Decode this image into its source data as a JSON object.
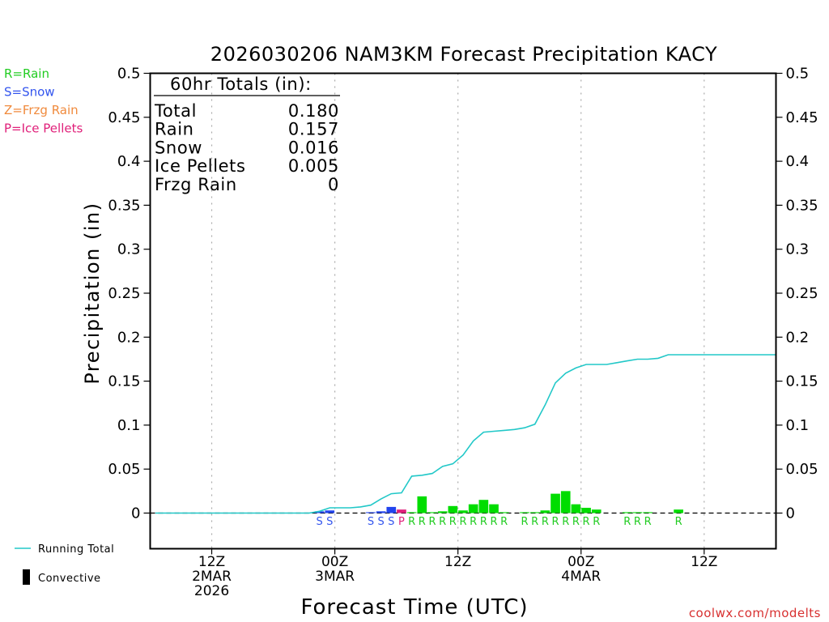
{
  "chart_data": {
    "type": "bar",
    "title": "2026030206 NAM3KM Forecast Precipitation KACY",
    "ylabel": "Precipitation (in)",
    "xlabel": "Forecast Time (UTC)",
    "ylim": [
      -0.04,
      0.5
    ],
    "yticks": [
      0,
      0.05,
      0.1,
      0.15,
      0.2,
      0.25,
      0.3,
      0.35,
      0.4,
      0.45,
      0.5
    ],
    "ytick_labels": [
      "0",
      "0.05",
      "0.1",
      "0.15",
      "0.2",
      "0.25",
      "0.3",
      "0.35",
      "0.4",
      "0.45",
      "0.5"
    ],
    "xlim_hours": [
      0,
      61
    ],
    "x_ticks": [
      {
        "hour": 6,
        "lines": [
          "12Z",
          "2MAR",
          "2026"
        ]
      },
      {
        "hour": 18,
        "lines": [
          "00Z",
          "3MAR"
        ]
      },
      {
        "hour": 30,
        "lines": [
          "12Z"
        ]
      },
      {
        "hour": 42,
        "lines": [
          "00Z",
          "4MAR"
        ]
      },
      {
        "hour": 54,
        "lines": [
          "12Z"
        ]
      }
    ],
    "type_legend": [
      {
        "label": "R=Rain",
        "color": "#22cc22"
      },
      {
        "label": "S=Snow",
        "color": "#3355ee"
      },
      {
        "label": "Z=Frzg Rain",
        "color": "#f08a3c"
      },
      {
        "label": "P=Ice Pellets",
        "color": "#e0207a"
      }
    ],
    "totals_header": "60hr Totals (in):",
    "totals": [
      {
        "label": "Total",
        "value": "0.180"
      },
      {
        "label": "Rain",
        "value": "0.157"
      },
      {
        "label": "Snow",
        "value": "0.016"
      },
      {
        "label": "Ice Pellets",
        "value": "0.005"
      },
      {
        "label": "Frzg Rain",
        "value": "0"
      }
    ],
    "type_colors": {
      "R": "#00dd00",
      "S": "#2244ee",
      "P": "#e0207a",
      "Z": "#f08a3c"
    },
    "type_label_colors": {
      "R": "#22cc22",
      "S": "#3355ee",
      "P": "#e0207a",
      "Z": "#f08a3c"
    },
    "hourly_bars": [
      {
        "hour": 16,
        "value": 0.002,
        "type": "S"
      },
      {
        "hour": 17,
        "value": 0.003,
        "type": "S"
      },
      {
        "hour": 21,
        "value": 0.001,
        "type": "S"
      },
      {
        "hour": 22,
        "value": 0.002,
        "type": "S"
      },
      {
        "hour": 23,
        "value": 0.007,
        "type": "S"
      },
      {
        "hour": 24,
        "value": 0.004,
        "type": "P"
      },
      {
        "hour": 25,
        "value": 0.001,
        "type": "R"
      },
      {
        "hour": 26,
        "value": 0.019,
        "type": "R"
      },
      {
        "hour": 27,
        "value": 0.001,
        "type": "R"
      },
      {
        "hour": 28,
        "value": 0.002,
        "type": "R"
      },
      {
        "hour": 29,
        "value": 0.008,
        "type": "R"
      },
      {
        "hour": 30,
        "value": 0.003,
        "type": "R"
      },
      {
        "hour": 31,
        "value": 0.01,
        "type": "R"
      },
      {
        "hour": 32,
        "value": 0.015,
        "type": "R"
      },
      {
        "hour": 33,
        "value": 0.01,
        "type": "R"
      },
      {
        "hour": 34,
        "value": 0.001,
        "type": "R"
      },
      {
        "hour": 36,
        "value": 0.001,
        "type": "R"
      },
      {
        "hour": 37,
        "value": 0.001,
        "type": "R"
      },
      {
        "hour": 38,
        "value": 0.003,
        "type": "R"
      },
      {
        "hour": 39,
        "value": 0.022,
        "type": "R"
      },
      {
        "hour": 40,
        "value": 0.025,
        "type": "R"
      },
      {
        "hour": 41,
        "value": 0.01,
        "type": "R"
      },
      {
        "hour": 42,
        "value": 0.006,
        "type": "R"
      },
      {
        "hour": 43,
        "value": 0.004,
        "type": "R"
      },
      {
        "hour": 46,
        "value": 0.001,
        "type": "R"
      },
      {
        "hour": 47,
        "value": 0.001,
        "type": "R"
      },
      {
        "hour": 48,
        "value": 0.001,
        "type": "R"
      },
      {
        "hour": 51,
        "value": 0.004,
        "type": "R"
      }
    ],
    "type_markers": [
      {
        "hour": 16.5,
        "letter": "S"
      },
      {
        "hour": 17.5,
        "letter": "S"
      },
      {
        "hour": 21.5,
        "letter": "S"
      },
      {
        "hour": 22.5,
        "letter": "S"
      },
      {
        "hour": 23.5,
        "letter": "S"
      },
      {
        "hour": 24.5,
        "letter": "P"
      },
      {
        "hour": 25.5,
        "letter": "R"
      },
      {
        "hour": 26.5,
        "letter": "R"
      },
      {
        "hour": 27.5,
        "letter": "R"
      },
      {
        "hour": 28.5,
        "letter": "R"
      },
      {
        "hour": 29.5,
        "letter": "R"
      },
      {
        "hour": 30.5,
        "letter": "R"
      },
      {
        "hour": 31.5,
        "letter": "R"
      },
      {
        "hour": 32.5,
        "letter": "R"
      },
      {
        "hour": 33.5,
        "letter": "R"
      },
      {
        "hour": 34.5,
        "letter": "R"
      },
      {
        "hour": 36.5,
        "letter": "R"
      },
      {
        "hour": 37.5,
        "letter": "R"
      },
      {
        "hour": 38.5,
        "letter": "R"
      },
      {
        "hour": 39.5,
        "letter": "R"
      },
      {
        "hour": 40.5,
        "letter": "R"
      },
      {
        "hour": 41.5,
        "letter": "R"
      },
      {
        "hour": 42.5,
        "letter": "R"
      },
      {
        "hour": 43.5,
        "letter": "R"
      },
      {
        "hour": 46.5,
        "letter": "R"
      },
      {
        "hour": 47.5,
        "letter": "R"
      },
      {
        "hour": 48.5,
        "letter": "R"
      },
      {
        "hour": 51.5,
        "letter": "R"
      }
    ],
    "running_total": [
      {
        "hour": 0.5,
        "value": 0
      },
      {
        "hour": 15.5,
        "value": 0
      },
      {
        "hour": 16.5,
        "value": 0.002
      },
      {
        "hour": 17.5,
        "value": 0.006
      },
      {
        "hour": 18.5,
        "value": 0.006
      },
      {
        "hour": 19.5,
        "value": 0.006
      },
      {
        "hour": 20.5,
        "value": 0.007
      },
      {
        "hour": 21.5,
        "value": 0.009
      },
      {
        "hour": 22.5,
        "value": 0.016
      },
      {
        "hour": 23.5,
        "value": 0.022
      },
      {
        "hour": 24.5,
        "value": 0.023
      },
      {
        "hour": 25.5,
        "value": 0.042
      },
      {
        "hour": 26.5,
        "value": 0.043
      },
      {
        "hour": 27.5,
        "value": 0.045
      },
      {
        "hour": 28.5,
        "value": 0.053
      },
      {
        "hour": 29.5,
        "value": 0.056
      },
      {
        "hour": 30.5,
        "value": 0.066
      },
      {
        "hour": 31.5,
        "value": 0.082
      },
      {
        "hour": 32.5,
        "value": 0.092
      },
      {
        "hour": 33.5,
        "value": 0.093
      },
      {
        "hour": 34.5,
        "value": 0.094
      },
      {
        "hour": 35.5,
        "value": 0.095
      },
      {
        "hour": 36.5,
        "value": 0.097
      },
      {
        "hour": 37.5,
        "value": 0.101
      },
      {
        "hour": 38.5,
        "value": 0.123
      },
      {
        "hour": 39.5,
        "value": 0.148
      },
      {
        "hour": 40.5,
        "value": 0.159
      },
      {
        "hour": 41.5,
        "value": 0.165
      },
      {
        "hour": 42.5,
        "value": 0.169
      },
      {
        "hour": 43.5,
        "value": 0.169
      },
      {
        "hour": 44.5,
        "value": 0.169
      },
      {
        "hour": 45.5,
        "value": 0.171
      },
      {
        "hour": 46.5,
        "value": 0.173
      },
      {
        "hour": 47.5,
        "value": 0.175
      },
      {
        "hour": 48.5,
        "value": 0.175
      },
      {
        "hour": 49.5,
        "value": 0.176
      },
      {
        "hour": 50.5,
        "value": 0.18
      },
      {
        "hour": 61,
        "value": 0.18
      }
    ],
    "series_legend": [
      {
        "label": "Running Total",
        "color": "#22c8c8"
      },
      {
        "label": "Convective",
        "color": "#000000"
      }
    ],
    "line_color": "#22c8c8",
    "credit": "coolwx.com/modelts"
  }
}
